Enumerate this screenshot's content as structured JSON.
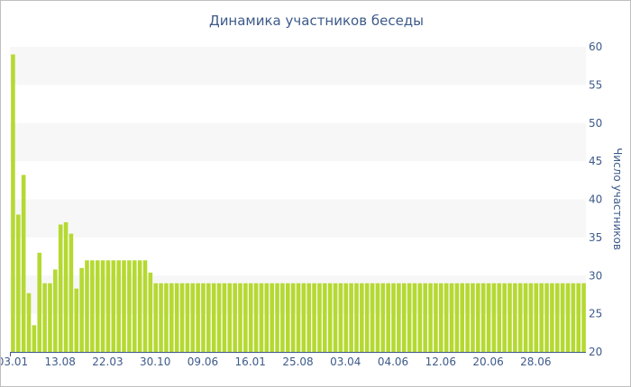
{
  "chart_data": {
    "type": "bar",
    "title": "Динамика участников беседы",
    "ylabel": "Число участников",
    "xlabel": "",
    "ylim": [
      20,
      60
    ],
    "yticks": [
      20,
      25,
      30,
      35,
      40,
      45,
      50,
      55,
      60
    ],
    "y_axis_position": "right",
    "grid": "alternating horizontal bands",
    "bar_color": "#b5d931",
    "band_color": "#f7f7f7",
    "text_color": "#3d5a8a",
    "xtick_labels": [
      {
        "index": 0,
        "label": "03.01"
      },
      {
        "index": 9,
        "label": "13.08"
      },
      {
        "index": 18,
        "label": "22.03"
      },
      {
        "index": 27,
        "label": "30.10"
      },
      {
        "index": 36,
        "label": "09.06"
      },
      {
        "index": 45,
        "label": "16.01"
      },
      {
        "index": 54,
        "label": "25.08"
      },
      {
        "index": 63,
        "label": "03.04"
      },
      {
        "index": 72,
        "label": "04.06"
      },
      {
        "index": 81,
        "label": "12.06"
      },
      {
        "index": 90,
        "label": "20.06"
      },
      {
        "index": 99,
        "label": "28.06"
      }
    ],
    "values": [
      59,
      38,
      43.2,
      27.7,
      23.5,
      33,
      29,
      29,
      30.8,
      36.7,
      37,
      35.5,
      28.3,
      31,
      32,
      32,
      32,
      32,
      32,
      32,
      32,
      32,
      32,
      32,
      32,
      32,
      30.4,
      29,
      29,
      29,
      29,
      29,
      29,
      29,
      29,
      29,
      29,
      29,
      29,
      29,
      29,
      29,
      29,
      29,
      29,
      29,
      29,
      29,
      29,
      29,
      29,
      29,
      29,
      29,
      29,
      29,
      29,
      29,
      29,
      29,
      29,
      29,
      29,
      29,
      29,
      29,
      29,
      29,
      29,
      29,
      29,
      29,
      29,
      29,
      29,
      29,
      29,
      29,
      29,
      29,
      29,
      29,
      29,
      29,
      29,
      29,
      29,
      29,
      29,
      29,
      29,
      29,
      29,
      29,
      29,
      29,
      29,
      29,
      29,
      29,
      29,
      29,
      29,
      29,
      29,
      29,
      29,
      29,
      29
    ]
  }
}
